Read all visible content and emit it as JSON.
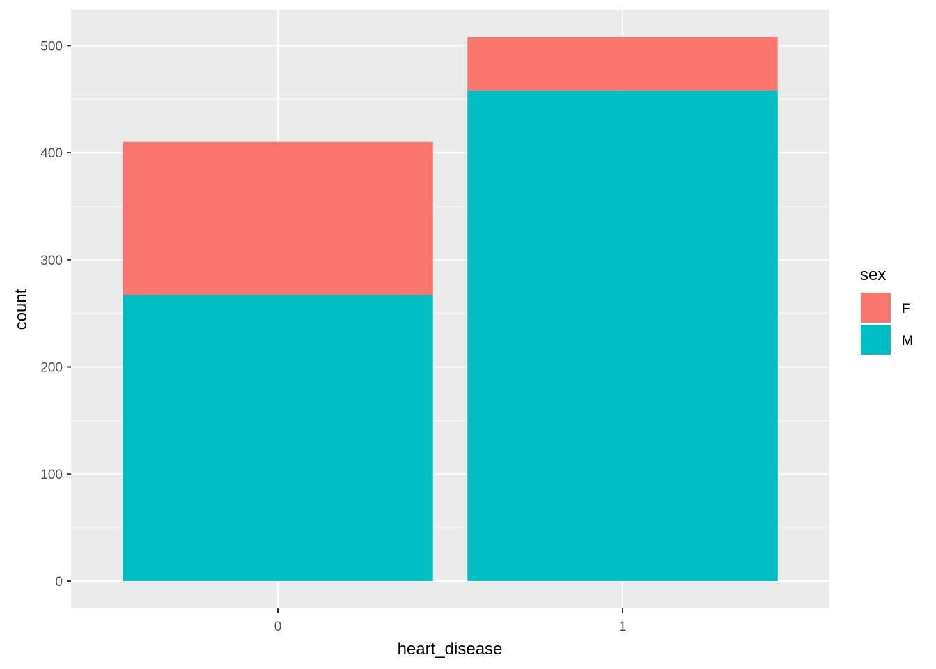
{
  "chart_data": {
    "type": "bar",
    "stacked": true,
    "categories": [
      "0",
      "1"
    ],
    "series": [
      {
        "name": "F",
        "values": [
          143,
          50
        ],
        "color": "#F8766D"
      },
      {
        "name": "M",
        "values": [
          267,
          458
        ],
        "color": "#00BFC4"
      }
    ],
    "xlabel": "heart_disease",
    "ylabel": "count",
    "ylim": [
      -25.4,
      533.4
    ],
    "yticks": [
      0,
      100,
      200,
      300,
      400,
      500
    ],
    "grid": true,
    "legend": {
      "title": "sex",
      "placement": "right",
      "entries": [
        "F",
        "M"
      ]
    },
    "colors": {
      "panel_background": "#EBEBEB",
      "grid_line": "#FFFFFF",
      "axis_text": "#4D4D4D",
      "axis_tick": "#333333"
    }
  }
}
